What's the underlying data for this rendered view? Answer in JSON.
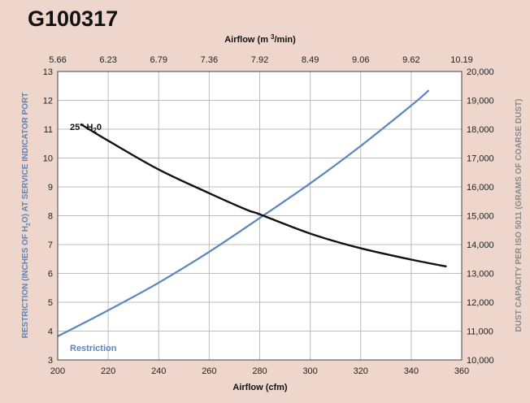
{
  "title": "G100317",
  "chart_data": {
    "type": "line",
    "xlabel": "Airflow (cfm)",
    "x_ticks": [
      "200",
      "220",
      "240",
      "260",
      "280",
      "300",
      "320",
      "340",
      "360"
    ],
    "xlim": [
      200,
      360
    ],
    "x2label": "Airflow (m³/min)",
    "x2_ticks": [
      "5.66",
      "6.23",
      "6.79",
      "7.36",
      "7.92",
      "8.49",
      "9.06",
      "9.62",
      "10.19"
    ],
    "ylabel": "RESTRICTION (INCHES OF H₂O) AT SERVICE INDICATOR PORT",
    "y_ticks": [
      "3",
      "4",
      "5",
      "6",
      "7",
      "8",
      "9",
      "10",
      "11",
      "12",
      "13"
    ],
    "ylim": [
      3,
      13
    ],
    "y2label": "DUST CAPACITY PER ISO 5011 (GRAMS OF COARSE DUST)",
    "y2_ticks": [
      "10,000",
      "11,000",
      "12,000",
      "13,000",
      "14,000",
      "15,000",
      "16,000",
      "17,000",
      "18,000",
      "19,000",
      "20,000"
    ],
    "y2lim": [
      10000,
      20000
    ],
    "grid": true,
    "series": [
      {
        "name": "Restriction",
        "axis": "left",
        "color": "#5b86bd",
        "x": [
          200,
          220,
          240,
          260,
          280,
          300,
          320,
          340,
          347
        ],
        "y": [
          3.82,
          4.72,
          5.68,
          6.75,
          7.92,
          9.12,
          10.42,
          11.82,
          12.35
        ]
      },
      {
        "name": "Dust capacity",
        "axis": "right",
        "color": "#111111",
        "x": [
          209,
          220,
          240,
          260,
          275,
          280,
          300,
          320,
          340,
          354
        ],
        "y": [
          18180,
          17600,
          16600,
          15780,
          15200,
          15050,
          14380,
          13870,
          13480,
          13240
        ]
      }
    ],
    "annotations": [
      {
        "text": "Restriction",
        "color": "#5b86bd"
      },
      {
        "text": "25\" H",
        "sub": "2",
        "tail": "0"
      }
    ]
  }
}
